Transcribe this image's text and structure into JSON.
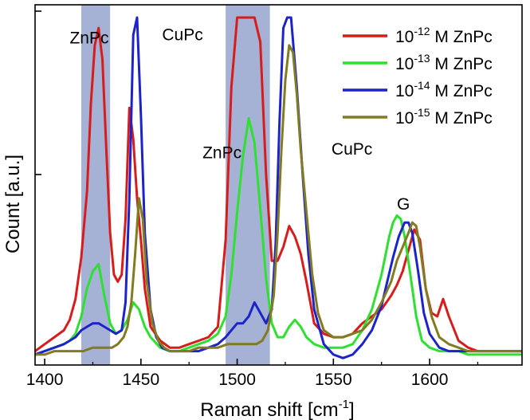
{
  "chart_data": {
    "type": "line",
    "title": "",
    "xlabel": "Raman shift [cm",
    "xlabel_sup": "-1",
    "xlabel_end": "]",
    "ylabel": "Count [a.u.]",
    "xlim": [
      1395,
      1648
    ],
    "ylim": [
      0,
      1
    ],
    "x_ticks": [
      1400,
      1450,
      1500,
      1550,
      1600
    ],
    "x_tick_labels": [
      "1400",
      "1450",
      "1500",
      "1550",
      "1600"
    ],
    "y_ticks_unlabeled": [
      0.5,
      1.0
    ],
    "legend_position": "top-right",
    "highlight_bands": [
      {
        "from": 1419,
        "to": 1434,
        "color": "#6e82bb"
      },
      {
        "from": 1494,
        "to": 1517,
        "color": "#6e82bb"
      }
    ],
    "annotations": [
      {
        "text": "ZnPc",
        "x": 1413,
        "y": 0.925
      },
      {
        "text": "CuPc",
        "x": 1461,
        "y": 0.935
      },
      {
        "text": "ZnPc",
        "x": 1482,
        "y": 0.595
      },
      {
        "text": "CuPc",
        "x": 1549,
        "y": 0.605
      },
      {
        "text": "G",
        "x": 1583,
        "y": 0.447
      }
    ],
    "series": [
      {
        "name_base": "10",
        "name_exp": "-12",
        "name_rest": " M ZnPc",
        "color": "#d81c1c",
        "x": [
          1395,
          1400,
          1405,
          1410,
          1413,
          1416,
          1419,
          1422,
          1424,
          1426,
          1428,
          1430,
          1432,
          1434,
          1436,
          1438,
          1440,
          1442,
          1444,
          1446,
          1448,
          1450,
          1452,
          1455,
          1460,
          1465,
          1470,
          1475,
          1480,
          1485,
          1490,
          1494,
          1497,
          1500,
          1503,
          1506,
          1509,
          1512,
          1515,
          1518,
          1521,
          1524,
          1527,
          1530,
          1533,
          1536,
          1540,
          1545,
          1550,
          1555,
          1560,
          1565,
          1570,
          1575,
          1580,
          1583,
          1586,
          1589,
          1592,
          1595,
          1598,
          1601,
          1604,
          1607,
          1610,
          1615,
          1620,
          1625,
          1630,
          1635,
          1640,
          1648
        ],
        "y": [
          0.04,
          0.06,
          0.08,
          0.1,
          0.13,
          0.19,
          0.31,
          0.5,
          0.75,
          0.92,
          0.97,
          0.88,
          0.62,
          0.38,
          0.26,
          0.24,
          0.26,
          0.42,
          0.74,
          0.65,
          0.48,
          0.36,
          0.22,
          0.11,
          0.07,
          0.05,
          0.05,
          0.06,
          0.07,
          0.08,
          0.11,
          0.36,
          0.8,
          1.0,
          1.0,
          1.0,
          1.0,
          0.93,
          0.55,
          0.3,
          0.3,
          0.34,
          0.4,
          0.37,
          0.32,
          0.24,
          0.12,
          0.09,
          0.08,
          0.08,
          0.09,
          0.12,
          0.14,
          0.16,
          0.2,
          0.23,
          0.27,
          0.33,
          0.39,
          0.36,
          0.22,
          0.15,
          0.14,
          0.19,
          0.14,
          0.07,
          0.05,
          0.04,
          0.04,
          0.04,
          0.04,
          0.04
        ]
      },
      {
        "name_base": "10",
        "name_exp": "-13",
        "name_rest": " M ZnPc",
        "color": "#2ee030",
        "x": [
          1395,
          1400,
          1405,
          1410,
          1413,
          1416,
          1419,
          1422,
          1425,
          1428,
          1431,
          1434,
          1437,
          1440,
          1443,
          1446,
          1449,
          1452,
          1455,
          1460,
          1465,
          1470,
          1475,
          1480,
          1485,
          1490,
          1494,
          1497,
          1500,
          1503,
          1506,
          1509,
          1512,
          1515,
          1518,
          1521,
          1524,
          1527,
          1530,
          1533,
          1536,
          1540,
          1545,
          1550,
          1555,
          1560,
          1565,
          1570,
          1575,
          1579,
          1581,
          1583,
          1585,
          1587,
          1590,
          1593,
          1596,
          1600,
          1605,
          1610,
          1615,
          1620,
          1625,
          1630,
          1635,
          1640,
          1648
        ],
        "y": [
          0.03,
          0.04,
          0.05,
          0.06,
          0.07,
          0.09,
          0.14,
          0.22,
          0.27,
          0.29,
          0.2,
          0.12,
          0.09,
          0.1,
          0.13,
          0.18,
          0.16,
          0.11,
          0.08,
          0.05,
          0.04,
          0.04,
          0.05,
          0.06,
          0.07,
          0.09,
          0.14,
          0.26,
          0.44,
          0.6,
          0.71,
          0.64,
          0.45,
          0.25,
          0.12,
          0.08,
          0.08,
          0.11,
          0.13,
          0.11,
          0.08,
          0.06,
          0.05,
          0.05,
          0.05,
          0.06,
          0.1,
          0.16,
          0.26,
          0.37,
          0.41,
          0.43,
          0.42,
          0.37,
          0.26,
          0.14,
          0.07,
          0.05,
          0.04,
          0.04,
          0.04,
          0.03,
          0.03,
          0.03,
          0.03,
          0.03,
          0.03
        ]
      },
      {
        "name_base": "10",
        "name_exp": "-14",
        "name_rest": " M ZnPc",
        "color": "#1c24c9",
        "x": [
          1395,
          1400,
          1405,
          1410,
          1413,
          1416,
          1419,
          1422,
          1425,
          1428,
          1431,
          1434,
          1437,
          1440,
          1442,
          1444,
          1446,
          1448,
          1450,
          1452,
          1455,
          1458,
          1461,
          1465,
          1470,
          1475,
          1480,
          1485,
          1490,
          1494,
          1497,
          1500,
          1503,
          1506,
          1509,
          1512,
          1515,
          1518,
          1520,
          1522,
          1524,
          1526,
          1528,
          1531,
          1534,
          1537,
          1540,
          1545,
          1550,
          1555,
          1560,
          1565,
          1570,
          1575,
          1578,
          1581,
          1584,
          1587,
          1589,
          1591,
          1594,
          1597,
          1600,
          1605,
          1610,
          1615,
          1620,
          1625,
          1630,
          1635,
          1640,
          1648
        ],
        "y": [
          0.03,
          0.04,
          0.05,
          0.06,
          0.07,
          0.08,
          0.1,
          0.11,
          0.12,
          0.12,
          0.11,
          0.1,
          0.09,
          0.1,
          0.18,
          0.48,
          0.95,
          1.0,
          0.72,
          0.38,
          0.16,
          0.08,
          0.05,
          0.04,
          0.04,
          0.04,
          0.04,
          0.05,
          0.06,
          0.08,
          0.1,
          0.12,
          0.12,
          0.14,
          0.18,
          0.15,
          0.12,
          0.16,
          0.35,
          0.7,
          0.97,
          1.0,
          1.0,
          0.8,
          0.55,
          0.32,
          0.16,
          0.06,
          0.03,
          0.02,
          0.03,
          0.06,
          0.1,
          0.17,
          0.24,
          0.31,
          0.37,
          0.41,
          0.41,
          0.38,
          0.27,
          0.15,
          0.09,
          0.05,
          0.04,
          0.04,
          0.04,
          0.04,
          0.04,
          0.04,
          0.04,
          0.04
        ]
      },
      {
        "name_base": "10",
        "name_exp": "-15",
        "name_rest": " M ZnPc",
        "color": "#827b21",
        "x": [
          1395,
          1400,
          1405,
          1410,
          1415,
          1420,
          1425,
          1430,
          1435,
          1438,
          1441,
          1443,
          1445,
          1447,
          1449,
          1451,
          1453,
          1456,
          1459,
          1462,
          1465,
          1470,
          1475,
          1480,
          1485,
          1490,
          1495,
          1498,
          1501,
          1504,
          1507,
          1510,
          1513,
          1516,
          1519,
          1521,
          1523,
          1525,
          1527,
          1529,
          1531,
          1533,
          1536,
          1539,
          1542,
          1545,
          1550,
          1555,
          1560,
          1565,
          1570,
          1575,
          1580,
          1583,
          1586,
          1589,
          1591,
          1593,
          1595,
          1598,
          1601,
          1605,
          1610,
          1615,
          1620,
          1625,
          1630,
          1635,
          1640,
          1648
        ],
        "y": [
          0.03,
          0.03,
          0.04,
          0.04,
          0.04,
          0.04,
          0.05,
          0.05,
          0.05,
          0.06,
          0.08,
          0.11,
          0.18,
          0.32,
          0.48,
          0.42,
          0.24,
          0.12,
          0.07,
          0.05,
          0.04,
          0.04,
          0.04,
          0.05,
          0.05,
          0.05,
          0.06,
          0.06,
          0.06,
          0.06,
          0.06,
          0.06,
          0.07,
          0.1,
          0.2,
          0.38,
          0.62,
          0.82,
          0.92,
          0.9,
          0.78,
          0.62,
          0.44,
          0.26,
          0.15,
          0.1,
          0.08,
          0.08,
          0.09,
          0.1,
          0.13,
          0.18,
          0.24,
          0.3,
          0.34,
          0.38,
          0.41,
          0.4,
          0.34,
          0.22,
          0.14,
          0.08,
          0.06,
          0.05,
          0.04,
          0.04,
          0.04,
          0.04,
          0.04,
          0.04
        ]
      }
    ]
  }
}
